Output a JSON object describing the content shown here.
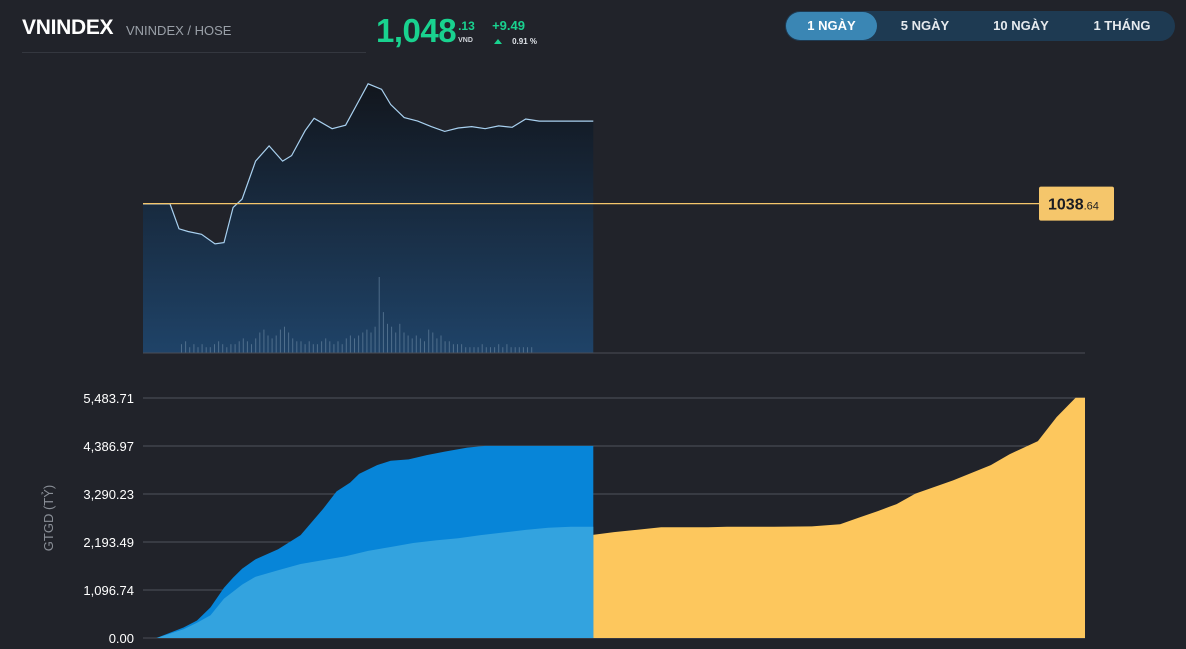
{
  "header": {
    "symbol": "VNINDEX",
    "exchange": "VNINDEX / HOSE",
    "price_int": "1,048",
    "price_dec": ".13",
    "currency": "VND",
    "change": "+9.49",
    "change_pct": "0.91 %"
  },
  "tabs": [
    {
      "label": "1 NGÀY",
      "active": true
    },
    {
      "label": "5 NGÀY",
      "active": false
    },
    {
      "label": "10 NGÀY",
      "active": false
    },
    {
      "label": "1 THÁNG",
      "active": false
    }
  ],
  "colors": {
    "up": "#19d28f",
    "reference": "#f5c66b",
    "today_volume_total": "#0785d8",
    "today_volume_inner": "#33a3df",
    "previous_session_volume": "#fdc75d",
    "price_line": "#a9d1f0",
    "background": "#21232a"
  },
  "chart_data": [
    {
      "type": "line",
      "title": "",
      "reference_value": 1038.64,
      "reference_label_int": "1038",
      "reference_label_dec": ".64",
      "x": [
        0,
        0.06,
        0.08,
        0.1,
        0.13,
        0.16,
        0.18,
        0.2,
        0.22,
        0.25,
        0.28,
        0.31,
        0.33,
        0.36,
        0.38,
        0.42,
        0.45,
        0.48,
        0.5,
        0.53,
        0.55,
        0.58,
        0.61,
        0.64,
        0.67,
        0.7,
        0.73,
        0.76,
        0.79,
        0.82,
        0.85,
        0.88,
        0.9,
        0.94,
        1
      ],
      "y": [
        1038.6,
        1038.6,
        1035.0,
        1034.6,
        1034.2,
        1032.8,
        1033.0,
        1038.1,
        1039.3,
        1044.8,
        1047.0,
        1044.8,
        1045.6,
        1049.2,
        1051.0,
        1049.5,
        1050.0,
        1053.6,
        1056.0,
        1055.2,
        1053.0,
        1051.1,
        1050.6,
        1049.8,
        1049.1,
        1049.6,
        1049.8,
        1049.5,
        1049.9,
        1049.7,
        1050.9,
        1050.6,
        1050.6,
        1050.6,
        1050.6
      ],
      "session_fraction": 0.478,
      "volume_bars": [
        3,
        4,
        2,
        3,
        2,
        3,
        2,
        2,
        3,
        4,
        3,
        2,
        3,
        3,
        4,
        5,
        4,
        3,
        5,
        7,
        8,
        6,
        5,
        6,
        8,
        9,
        7,
        5,
        4,
        4,
        3,
        4,
        3,
        3,
        4,
        5,
        4,
        3,
        4,
        3,
        5,
        6,
        5,
        6,
        7,
        8,
        7,
        9,
        26,
        14,
        10,
        9,
        7,
        10,
        7,
        6,
        5,
        6,
        5,
        4,
        8,
        7,
        5,
        6,
        4,
        4,
        3,
        3,
        3,
        2,
        2,
        2,
        2,
        3,
        2,
        2,
        2,
        3,
        2,
        3,
        2,
        2,
        2,
        2,
        2,
        2
      ]
    },
    {
      "type": "area",
      "ylabel": "GTGD (TỶ)",
      "yticks": [
        "0.00",
        "1,096.74",
        "2,193.49",
        "3,290.23",
        "4,386.97",
        "5,483.71"
      ],
      "ylim": [
        0,
        5483.71
      ],
      "series": [
        {
          "x": [
            0,
            0.04,
            0.06,
            0.08,
            0.1,
            0.12,
            0.14,
            0.16,
            0.18,
            0.2,
            0.22,
            0.25,
            0.3,
            0.35,
            0.4,
            0.45,
            0.5,
            0.55,
            0.6,
            0.62,
            0.67,
            0.71,
            0.74,
            0.76,
            0.78,
            0.8,
            0.82,
            0.86,
            0.9,
            0.92,
            0.95,
            0.97,
            0.99,
            1
          ],
          "values": [
            0,
            0,
            380,
            480,
            640,
            760,
            820,
            900,
            1000,
            1130,
            1250,
            1430,
            1680,
            1920,
            2100,
            2280,
            2420,
            2530,
            2530,
            2540,
            2540,
            2550,
            2600,
            2750,
            2900,
            3060,
            3300,
            3600,
            3950,
            4200,
            4500,
            5050,
            5490,
            5490
          ]
        },
        {
          "x": [
            0,
            0.03,
            0.06,
            0.09,
            0.12,
            0.15,
            0.18,
            0.2,
            0.22,
            0.25,
            0.3,
            0.35,
            0.4,
            0.43,
            0.46,
            0.48,
            0.5,
            0.52,
            0.55,
            0.59,
            0.63,
            0.67,
            0.72,
            0.76,
            0.8,
            0.85,
            0.9,
            0.95,
            1
          ],
          "values": [
            0,
            0,
            120,
            240,
            400,
            700,
            1150,
            1380,
            1580,
            1800,
            2030,
            2350,
            2950,
            3350,
            3550,
            3750,
            3850,
            3950,
            4050,
            4080,
            4180,
            4260,
            4350,
            4390,
            4390,
            4390,
            4390,
            4390,
            4390
          ]
        },
        {
          "x": [
            0,
            0.03,
            0.06,
            0.09,
            0.12,
            0.15,
            0.18,
            0.2,
            0.22,
            0.25,
            0.3,
            0.35,
            0.4,
            0.45,
            0.5,
            0.55,
            0.6,
            0.65,
            0.7,
            0.75,
            0.8,
            0.85,
            0.9,
            0.95,
            1
          ],
          "values": [
            0,
            0,
            100,
            200,
            350,
            520,
            900,
            1060,
            1220,
            1400,
            1550,
            1690,
            1780,
            1870,
            1990,
            2080,
            2170,
            2230,
            2280,
            2350,
            2410,
            2470,
            2520,
            2540,
            2540
          ]
        }
      ]
    }
  ]
}
